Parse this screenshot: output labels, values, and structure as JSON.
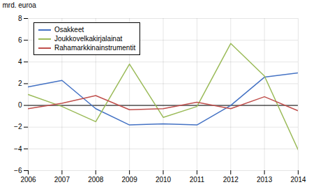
{
  "chart_data": {
    "type": "line",
    "ylabel": "mrd. euroa",
    "x": [
      2006,
      2007,
      2008,
      2009,
      2010,
      2011,
      2012,
      2013,
      2014
    ],
    "series": [
      {
        "name": "Osakkeet",
        "color": "#4472C4",
        "values": [
          1.7,
          2.3,
          -0.3,
          -1.8,
          -1.7,
          -1.8,
          0.0,
          2.6,
          3.0
        ]
      },
      {
        "name": "Joukkovelkakirjalainat",
        "color": "#9BBB59",
        "values": [
          1.0,
          -0.1,
          -1.5,
          3.8,
          -1.1,
          -0.1,
          5.7,
          2.7,
          -4.1
        ]
      },
      {
        "name": "Rahamarkkinainstrumentit",
        "color": "#C0504D",
        "values": [
          -0.3,
          0.2,
          0.9,
          -0.4,
          -0.3,
          0.3,
          -0.3,
          0.8,
          -0.5
        ]
      }
    ],
    "xlim": [
      2006,
      2014
    ],
    "xticks": [
      2006,
      2007,
      2008,
      2009,
      2010,
      2011,
      2012,
      2013,
      2014
    ],
    "ylim": [
      -6,
      8
    ],
    "yticks": [
      -6,
      -4,
      -2,
      0,
      2,
      4,
      6,
      8
    ],
    "grid": true,
    "legend": "upper left"
  }
}
